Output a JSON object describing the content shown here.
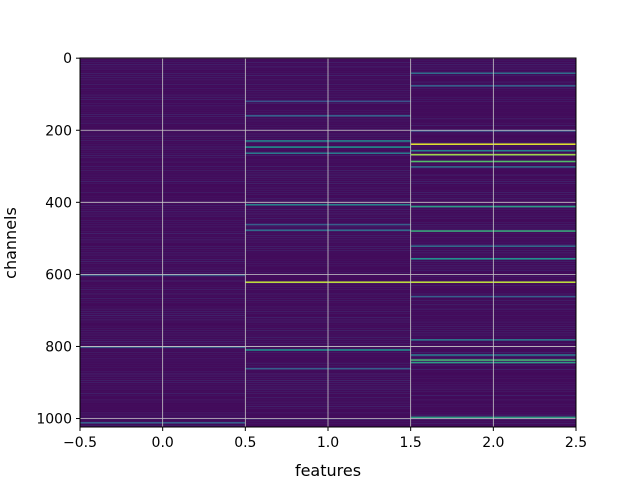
{
  "chart_data": {
    "type": "heatmap",
    "xlabel": "features",
    "ylabel": "channels",
    "xlim": [
      -0.5,
      2.5
    ],
    "ylim": [
      1023.5,
      -0.5
    ],
    "x_ticks": [
      -0.5,
      0.0,
      0.5,
      1.0,
      1.5,
      2.0,
      2.5
    ],
    "x_tick_labels": [
      "−0.5",
      "0.0",
      "0.5",
      "1.0",
      "1.5",
      "2.0",
      "2.5"
    ],
    "y_ticks": [
      0,
      200,
      400,
      600,
      800,
      1000
    ],
    "y_tick_labels": [
      "0",
      "200",
      "400",
      "600",
      "800",
      "1000"
    ],
    "grid": true,
    "colormap": "viridis",
    "n_rows": 1024,
    "n_cols": 3,
    "background_level": 0.03,
    "bright_rows": [
      {
        "row": 40,
        "col": 2,
        "level": 0.35
      },
      {
        "row": 75,
        "col": 2,
        "level": 0.3
      },
      {
        "row": 118,
        "col": 1,
        "level": 0.25
      },
      {
        "row": 158,
        "col": 1,
        "level": 0.3
      },
      {
        "row": 200,
        "col": 2,
        "level": 0.25
      },
      {
        "row": 228,
        "col": 1,
        "level": 0.45
      },
      {
        "row": 237,
        "col": 2,
        "level": 0.95
      },
      {
        "row": 245,
        "col": 1,
        "level": 0.5
      },
      {
        "row": 255,
        "col": 2,
        "level": 0.45
      },
      {
        "row": 262,
        "col": 1,
        "level": 0.4
      },
      {
        "row": 266,
        "col": 2,
        "level": 0.85
      },
      {
        "row": 285,
        "col": 2,
        "level": 0.7
      },
      {
        "row": 300,
        "col": 2,
        "level": 0.35
      },
      {
        "row": 405,
        "col": 1,
        "level": 0.45
      },
      {
        "row": 410,
        "col": 2,
        "level": 0.55
      },
      {
        "row": 460,
        "col": 1,
        "level": 0.3
      },
      {
        "row": 476,
        "col": 1,
        "level": 0.35
      },
      {
        "row": 478,
        "col": 2,
        "level": 0.6
      },
      {
        "row": 520,
        "col": 2,
        "level": 0.35
      },
      {
        "row": 555,
        "col": 2,
        "level": 0.5
      },
      {
        "row": 600,
        "col": 0,
        "level": 0.3
      },
      {
        "row": 620,
        "col": 1,
        "level": 0.9
      },
      {
        "row": 620,
        "col": 2,
        "level": 0.9
      },
      {
        "row": 660,
        "col": 2,
        "level": 0.3
      },
      {
        "row": 780,
        "col": 2,
        "level": 0.4
      },
      {
        "row": 800,
        "col": 0,
        "level": 0.3
      },
      {
        "row": 808,
        "col": 1,
        "level": 0.5
      },
      {
        "row": 822,
        "col": 2,
        "level": 0.4
      },
      {
        "row": 836,
        "col": 2,
        "level": 0.65
      },
      {
        "row": 843,
        "col": 2,
        "level": 0.55
      },
      {
        "row": 860,
        "col": 1,
        "level": 0.3
      },
      {
        "row": 995,
        "col": 2,
        "level": 0.55
      },
      {
        "row": 1010,
        "col": 0,
        "level": 0.3
      }
    ]
  }
}
